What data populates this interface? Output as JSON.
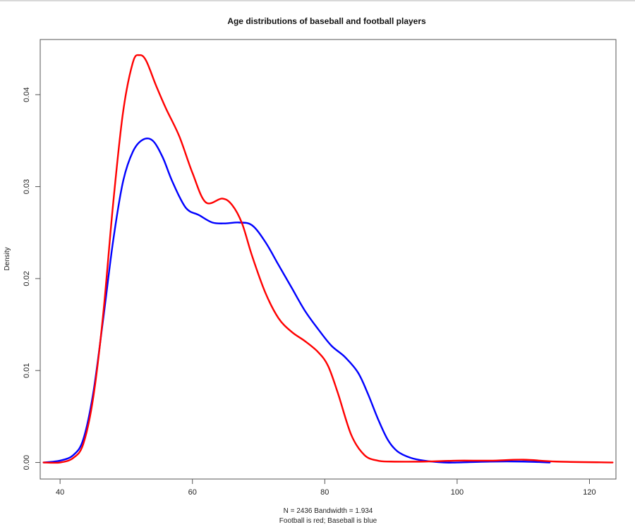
{
  "chart_data": {
    "type": "line",
    "title": "Age distributions of baseball and football players",
    "ylabel": "Density",
    "xlabel_line1": "N = 2436   Bandwidth = 1.934",
    "xlabel_line2": "Football is red; Baseball is blue",
    "xlim": [
      37,
      124
    ],
    "ylim": [
      -0.0018,
      0.046
    ],
    "x_ticks": [
      40,
      60,
      80,
      100,
      120
    ],
    "y_ticks": [
      0.0,
      0.01,
      0.02,
      0.03,
      0.04
    ],
    "x_tick_labels": [
      "40",
      "60",
      "80",
      "100",
      "120"
    ],
    "y_tick_labels": [
      "0.00",
      "0.01",
      "0.02",
      "0.03",
      "0.04"
    ],
    "grid": false,
    "series": [
      {
        "color": "#ff0000",
        "x": [
          37.5,
          40,
          42,
          43.5,
          45,
          46.5,
          48,
          49.5,
          51,
          52,
          53,
          54.5,
          56,
          58,
          60,
          62,
          64.5,
          66,
          67.5,
          69,
          71,
          73,
          75,
          77,
          79,
          80.5,
          82,
          84,
          86,
          88,
          90,
          95,
          100,
          105,
          110,
          115,
          123.5
        ],
        "y": [
          0.0,
          0.0,
          0.0005,
          0.002,
          0.007,
          0.016,
          0.028,
          0.038,
          0.0435,
          0.0443,
          0.0437,
          0.041,
          0.0385,
          0.0355,
          0.0315,
          0.0283,
          0.0287,
          0.028,
          0.026,
          0.0225,
          0.0185,
          0.0157,
          0.0142,
          0.0132,
          0.012,
          0.0105,
          0.0075,
          0.003,
          0.0008,
          0.0002,
          0.0001,
          0.0001,
          0.0002,
          0.0002,
          0.0003,
          0.0001,
          0.0
        ]
      },
      {
        "color": "#0000ff",
        "x": [
          37.5,
          40,
          42,
          43.5,
          45,
          46.5,
          48,
          49.5,
          51,
          52.5,
          54,
          55.5,
          57,
          59,
          61,
          63,
          65,
          67,
          69,
          71,
          73,
          75,
          77,
          79,
          81,
          83,
          85,
          86.5,
          88,
          89.5,
          91,
          93,
          95,
          98,
          100,
          105,
          110,
          114
        ],
        "y": [
          0.0,
          0.0002,
          0.0008,
          0.0025,
          0.0075,
          0.0155,
          0.024,
          0.0305,
          0.0338,
          0.0351,
          0.035,
          0.0332,
          0.0305,
          0.0277,
          0.0269,
          0.0261,
          0.026,
          0.0261,
          0.0258,
          0.024,
          0.0215,
          0.019,
          0.0165,
          0.0145,
          0.0127,
          0.0115,
          0.0098,
          0.0075,
          0.0048,
          0.0025,
          0.0012,
          0.0005,
          0.0002,
          0.0,
          0.0,
          0.0001,
          0.0001,
          0.0
        ]
      }
    ]
  }
}
